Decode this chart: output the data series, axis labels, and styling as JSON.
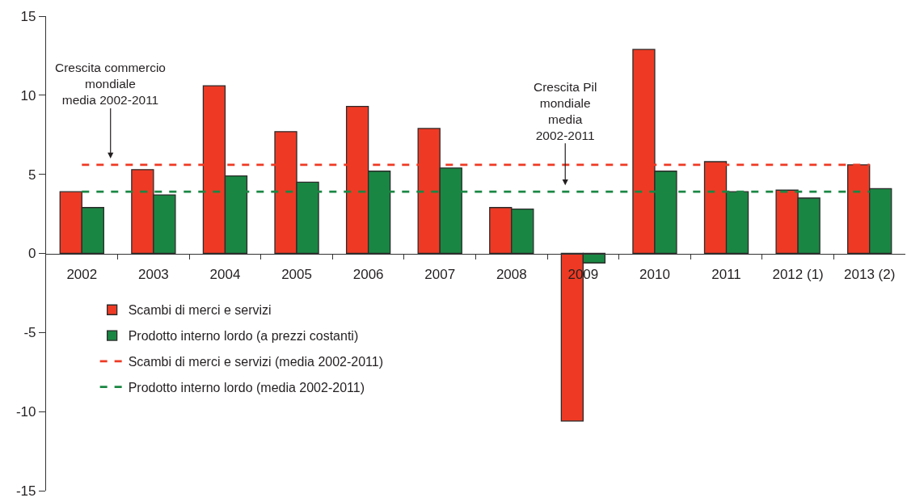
{
  "chart_data": {
    "type": "bar",
    "categories": [
      "2002",
      "2003",
      "2004",
      "2005",
      "2006",
      "2007",
      "2008",
      "2009",
      "2010",
      "2011",
      "2012 (1)",
      "2013 (2)"
    ],
    "series": [
      {
        "name": "Scambi di merci e servizi",
        "color": "#ee3a24",
        "values": [
          3.9,
          5.3,
          10.6,
          7.7,
          9.3,
          7.9,
          2.9,
          -10.6,
          12.9,
          5.8,
          4.0,
          5.6
        ]
      },
      {
        "name": "Prodotto interno lordo (a prezzi costanti)",
        "color": "#1a8643",
        "values": [
          2.9,
          3.7,
          4.9,
          4.5,
          5.2,
          5.4,
          2.8,
          -0.6,
          5.2,
          3.9,
          3.5,
          4.1
        ]
      }
    ],
    "ylim": [
      -15,
      15
    ],
    "yticks": [
      -15,
      -10,
      -5,
      0,
      5,
      10,
      15
    ],
    "ref_lines": [
      {
        "axis": "y",
        "value": 5.6,
        "label": "Scambi di merci e servizi (media 2002-2011)",
        "color": "#ee3a24",
        "line_style": "dashed"
      },
      {
        "axis": "y",
        "value": 3.9,
        "label": "Prodotto interno lordo (media 2002-2011)",
        "color": "#1a8643",
        "line_style": "dashed"
      }
    ],
    "annotations": [
      {
        "text": "Crescita commercio\nmondiale\nmedia 2002-2011",
        "y": 5.6
      },
      {
        "text": "Crescita Pil\nmondiale\nmedia\n2002-2011",
        "y": 3.9
      }
    ],
    "legend": "bottom left"
  }
}
